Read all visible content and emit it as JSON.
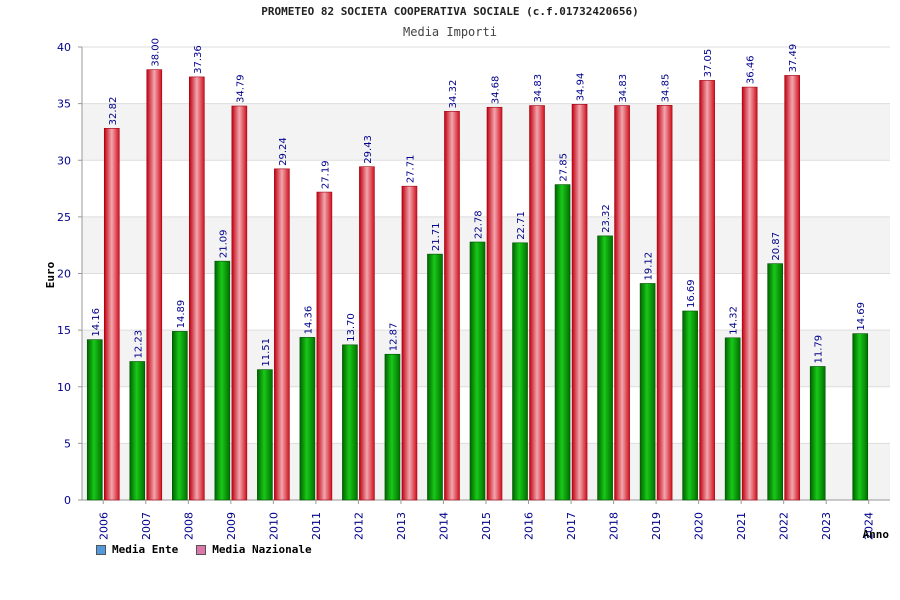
{
  "chart_data": {
    "type": "bar",
    "title": "PROMETEO 82 SOCIETA COOPERATIVA SOCIALE (c.f.01732420656)",
    "subtitle": "Media Importi",
    "ylabel": "Euro",
    "xlabel": "Anno",
    "ylim": [
      0,
      40
    ],
    "yticks": [
      0,
      5,
      10,
      15,
      20,
      25,
      30,
      35,
      40
    ],
    "categories": [
      "2006",
      "2007",
      "2008",
      "2009",
      "2010",
      "2011",
      "2012",
      "2013",
      "2014",
      "2015",
      "2016",
      "2017",
      "2018",
      "2019",
      "2020",
      "2021",
      "2022",
      "2023",
      "2024"
    ],
    "series": [
      {
        "name": "Media Ente",
        "values": [
          14.16,
          12.23,
          14.89,
          21.09,
          11.51,
          14.36,
          13.7,
          12.87,
          21.71,
          22.78,
          22.71,
          27.85,
          23.32,
          19.12,
          16.69,
          14.32,
          20.87,
          11.79,
          14.69
        ],
        "labels": [
          "14.16",
          "12.23",
          "14.89",
          "21.09",
          "11.51",
          "14.36",
          "13.70",
          "12.87",
          "21.71",
          "22.78",
          "22.71",
          "27.85",
          "23.32",
          "19.12",
          "16.69",
          "14.32",
          "20.87",
          "11.79",
          "14.69"
        ],
        "color": "#00a000",
        "legend_color": "#5599dd"
      },
      {
        "name": "Media Nazionale",
        "values": [
          32.82,
          38.0,
          37.36,
          34.79,
          29.24,
          27.19,
          29.43,
          27.71,
          34.32,
          34.68,
          34.83,
          34.94,
          34.83,
          34.85,
          37.05,
          36.46,
          37.49,
          null,
          null
        ],
        "labels": [
          "32.82",
          "38.00",
          "37.36",
          "34.79",
          "29.24",
          "27.19",
          "29.43",
          "27.71",
          "34.32",
          "34.68",
          "34.83",
          "34.94",
          "34.83",
          "34.85",
          "37.05",
          "36.46",
          "37.49",
          "",
          ""
        ],
        "color": "#e8202a",
        "legend_color": "#dd77aa"
      }
    ],
    "grid": true,
    "legend_position": "bottom-left"
  }
}
